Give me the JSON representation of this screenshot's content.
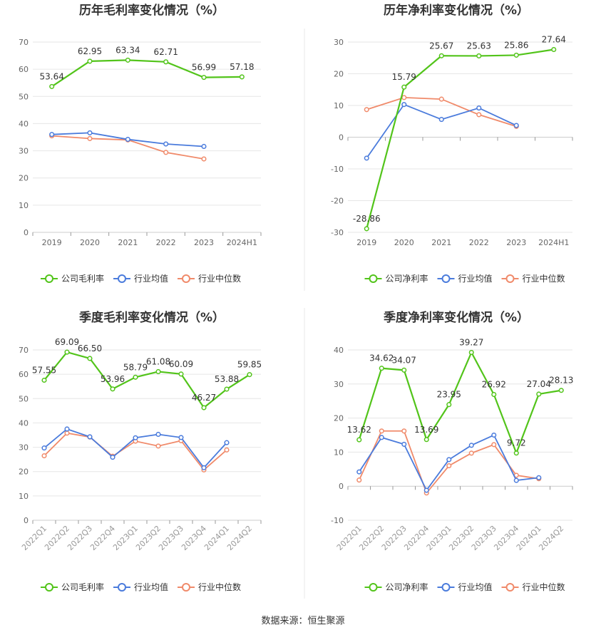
{
  "footer": "数据来源：恒生聚源",
  "colors": {
    "company": "#52c41a",
    "industry_avg": "#4a7bdc",
    "industry_median": "#f08a6a"
  },
  "chart_data": [
    {
      "type": "line",
      "title": "历年毛利率变化情况（%）",
      "categories": [
        "2019",
        "2020",
        "2021",
        "2022",
        "2023",
        "2024H1"
      ],
      "ylim": [
        0,
        70
      ],
      "yticks": [
        0,
        10,
        20,
        30,
        40,
        50,
        60,
        70
      ],
      "grid": true,
      "legend_position": "bottom",
      "series": [
        {
          "name": "公司毛利率",
          "values": [
            53.64,
            62.95,
            63.34,
            62.71,
            56.99,
            57.18
          ],
          "labels": [
            "53.64",
            "62.95",
            "63.34",
            "62.71",
            "56.99",
            "57.18"
          ]
        },
        {
          "name": "行业均值",
          "values": [
            36.0,
            36.6,
            34.2,
            32.5,
            31.6,
            null
          ]
        },
        {
          "name": "行业中位数",
          "values": [
            35.5,
            34.5,
            34.0,
            29.4,
            27.0,
            null
          ]
        }
      ]
    },
    {
      "type": "line",
      "title": "历年净利率变化情况（%）",
      "categories": [
        "2019",
        "2020",
        "2021",
        "2022",
        "2023",
        "2024H1"
      ],
      "ylim": [
        -30,
        30
      ],
      "yticks": [
        -30,
        -20,
        -10,
        0,
        10,
        20,
        30
      ],
      "grid": true,
      "legend_position": "bottom",
      "series": [
        {
          "name": "公司净利率",
          "values": [
            -28.86,
            15.79,
            25.67,
            25.63,
            25.86,
            27.64
          ],
          "labels": [
            "-28.86",
            "15.79",
            "25.67",
            "25.63",
            "25.86",
            "27.64"
          ]
        },
        {
          "name": "行业均值",
          "values": [
            -6.6,
            10.3,
            5.6,
            9.2,
            3.7,
            null
          ]
        },
        {
          "name": "行业中位数",
          "values": [
            8.7,
            12.5,
            12.0,
            7.1,
            3.4,
            null
          ]
        }
      ]
    },
    {
      "type": "line",
      "title": "季度毛利率变化情况（%）",
      "categories": [
        "2022Q1",
        "2022Q2",
        "2022Q3",
        "2022Q4",
        "2023Q1",
        "2023Q2",
        "2023Q3",
        "2023Q4",
        "2024Q1",
        "2024Q2"
      ],
      "ylim": [
        0,
        70
      ],
      "yticks": [
        0,
        10,
        20,
        30,
        40,
        50,
        60,
        70
      ],
      "grid": true,
      "legend_position": "bottom",
      "series": [
        {
          "name": "公司毛利率",
          "values": [
            57.55,
            69.09,
            66.5,
            53.96,
            58.79,
            61.08,
            60.09,
            46.27,
            53.88,
            59.85
          ],
          "labels": [
            "57.55",
            "69.09",
            "66.50",
            "53.96",
            "58.79",
            "61.08",
            "60.09",
            "46.27",
            "53.88",
            "59.85"
          ]
        },
        {
          "name": "行业均值",
          "values": [
            29.7,
            37.5,
            34.3,
            25.9,
            33.9,
            35.3,
            34.0,
            21.6,
            31.9,
            null
          ]
        },
        {
          "name": "行业中位数",
          "values": [
            26.5,
            35.8,
            34.2,
            26.3,
            32.5,
            30.5,
            32.7,
            20.7,
            28.9,
            null
          ]
        }
      ]
    },
    {
      "type": "line",
      "title": "季度净利率变化情况（%）",
      "categories": [
        "2022Q1",
        "2022Q2",
        "2022Q3",
        "2022Q4",
        "2023Q1",
        "2023Q2",
        "2023Q3",
        "2023Q4",
        "2024Q1",
        "2024Q2"
      ],
      "ylim": [
        -10,
        40
      ],
      "yticks": [
        -10,
        0,
        10,
        20,
        30,
        40
      ],
      "grid": true,
      "legend_position": "bottom",
      "series": [
        {
          "name": "公司净利率",
          "values": [
            13.62,
            34.62,
            34.07,
            13.69,
            23.95,
            39.27,
            26.92,
            9.72,
            27.04,
            28.13
          ],
          "labels": [
            "13.62",
            "34.62",
            "34.07",
            "13.69",
            "23.95",
            "39.27",
            "26.92",
            "9.72",
            "27.04",
            "28.13"
          ]
        },
        {
          "name": "行业均值",
          "values": [
            4.2,
            14.3,
            12.3,
            -1.2,
            7.8,
            12.0,
            15.0,
            1.7,
            2.5,
            null
          ]
        },
        {
          "name": "行业中位数",
          "values": [
            1.8,
            16.2,
            16.2,
            -2.0,
            6.0,
            9.7,
            12.2,
            3.2,
            2.2,
            null
          ]
        }
      ]
    }
  ]
}
